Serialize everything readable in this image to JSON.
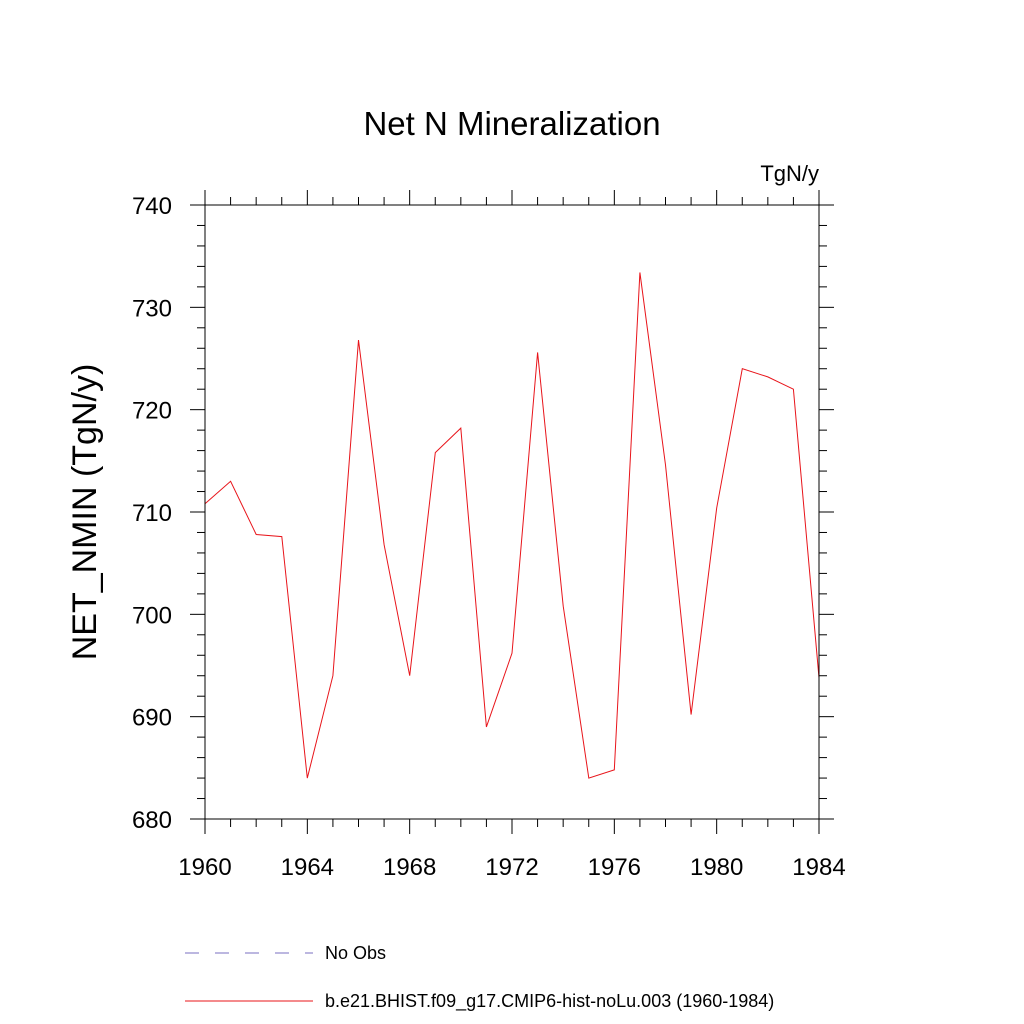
{
  "chart_data": {
    "type": "line",
    "title": "Net N Mineralization",
    "units_label": "TgN/y",
    "ylabel": "NET_NMIN  (TgN/y)",
    "xlabel": "",
    "xlim": [
      1960,
      1984
    ],
    "ylim": [
      680,
      740
    ],
    "x_ticks": [
      "1960",
      "1964",
      "1968",
      "1972",
      "1976",
      "1980",
      "1984"
    ],
    "y_ticks": [
      "680",
      "690",
      "700",
      "710",
      "720",
      "730",
      "740"
    ],
    "x": [
      1960,
      1961,
      1962,
      1963,
      1964,
      1965,
      1966,
      1967,
      1968,
      1969,
      1970,
      1971,
      1972,
      1973,
      1974,
      1975,
      1976,
      1977,
      1978,
      1979,
      1980,
      1981,
      1982,
      1983,
      1984
    ],
    "series": [
      {
        "name": "b.e21.BHIST.f09_g17.CMIP6-hist-noLu.003 (1960-1984)",
        "color": "#e8141a",
        "values": [
          710.8,
          713.0,
          707.8,
          707.6,
          684.0,
          694.0,
          726.8,
          706.8,
          694.0,
          715.8,
          718.2,
          689.0,
          696.2,
          725.6,
          700.8,
          684.0,
          684.8,
          733.4,
          714.6,
          690.2,
          710.4,
          724.0,
          723.2,
          722.0,
          693.8
        ]
      }
    ],
    "legend": [
      {
        "label": "No Obs",
        "color": "#7a6fc0",
        "style": "dashed"
      },
      {
        "label": "b.e21.BHIST.f09_g17.CMIP6-hist-noLu.003 (1960-1984)",
        "color": "#e8141a",
        "style": "solid"
      }
    ],
    "legend_position": "bottom",
    "grid": false
  }
}
